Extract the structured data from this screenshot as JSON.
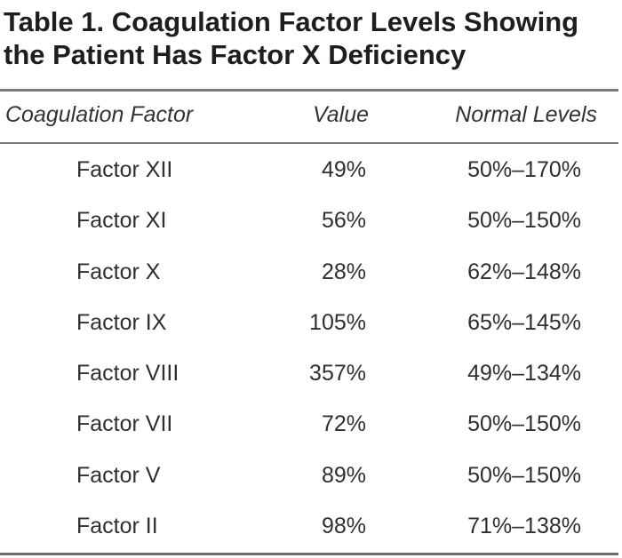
{
  "table": {
    "title_line1": "Table 1. Coagulation Factor Levels Showing",
    "title_line2": "the Patient Has Factor X Deficiency",
    "headers": {
      "factor": "Coagulation Factor",
      "value": "Value",
      "normal": "Normal Levels"
    },
    "rows": [
      {
        "factor": "Factor XII",
        "value": "49%",
        "normal": "50%–170%"
      },
      {
        "factor": "Factor XI",
        "value": "56%",
        "normal": "50%–150%"
      },
      {
        "factor": "Factor X",
        "value": "28%",
        "normal": "62%–148%"
      },
      {
        "factor": "Factor IX",
        "value": "105%",
        "normal": "65%–145%"
      },
      {
        "factor": "Factor VIII",
        "value": "357%",
        "normal": "49%–134%"
      },
      {
        "factor": "Factor VII",
        "value": "72%",
        "normal": "50%–150%"
      },
      {
        "factor": "Factor V",
        "value": "89%",
        "normal": "50%–150%"
      },
      {
        "factor": "Factor II",
        "value": "98%",
        "normal": "71%–138%"
      }
    ]
  }
}
